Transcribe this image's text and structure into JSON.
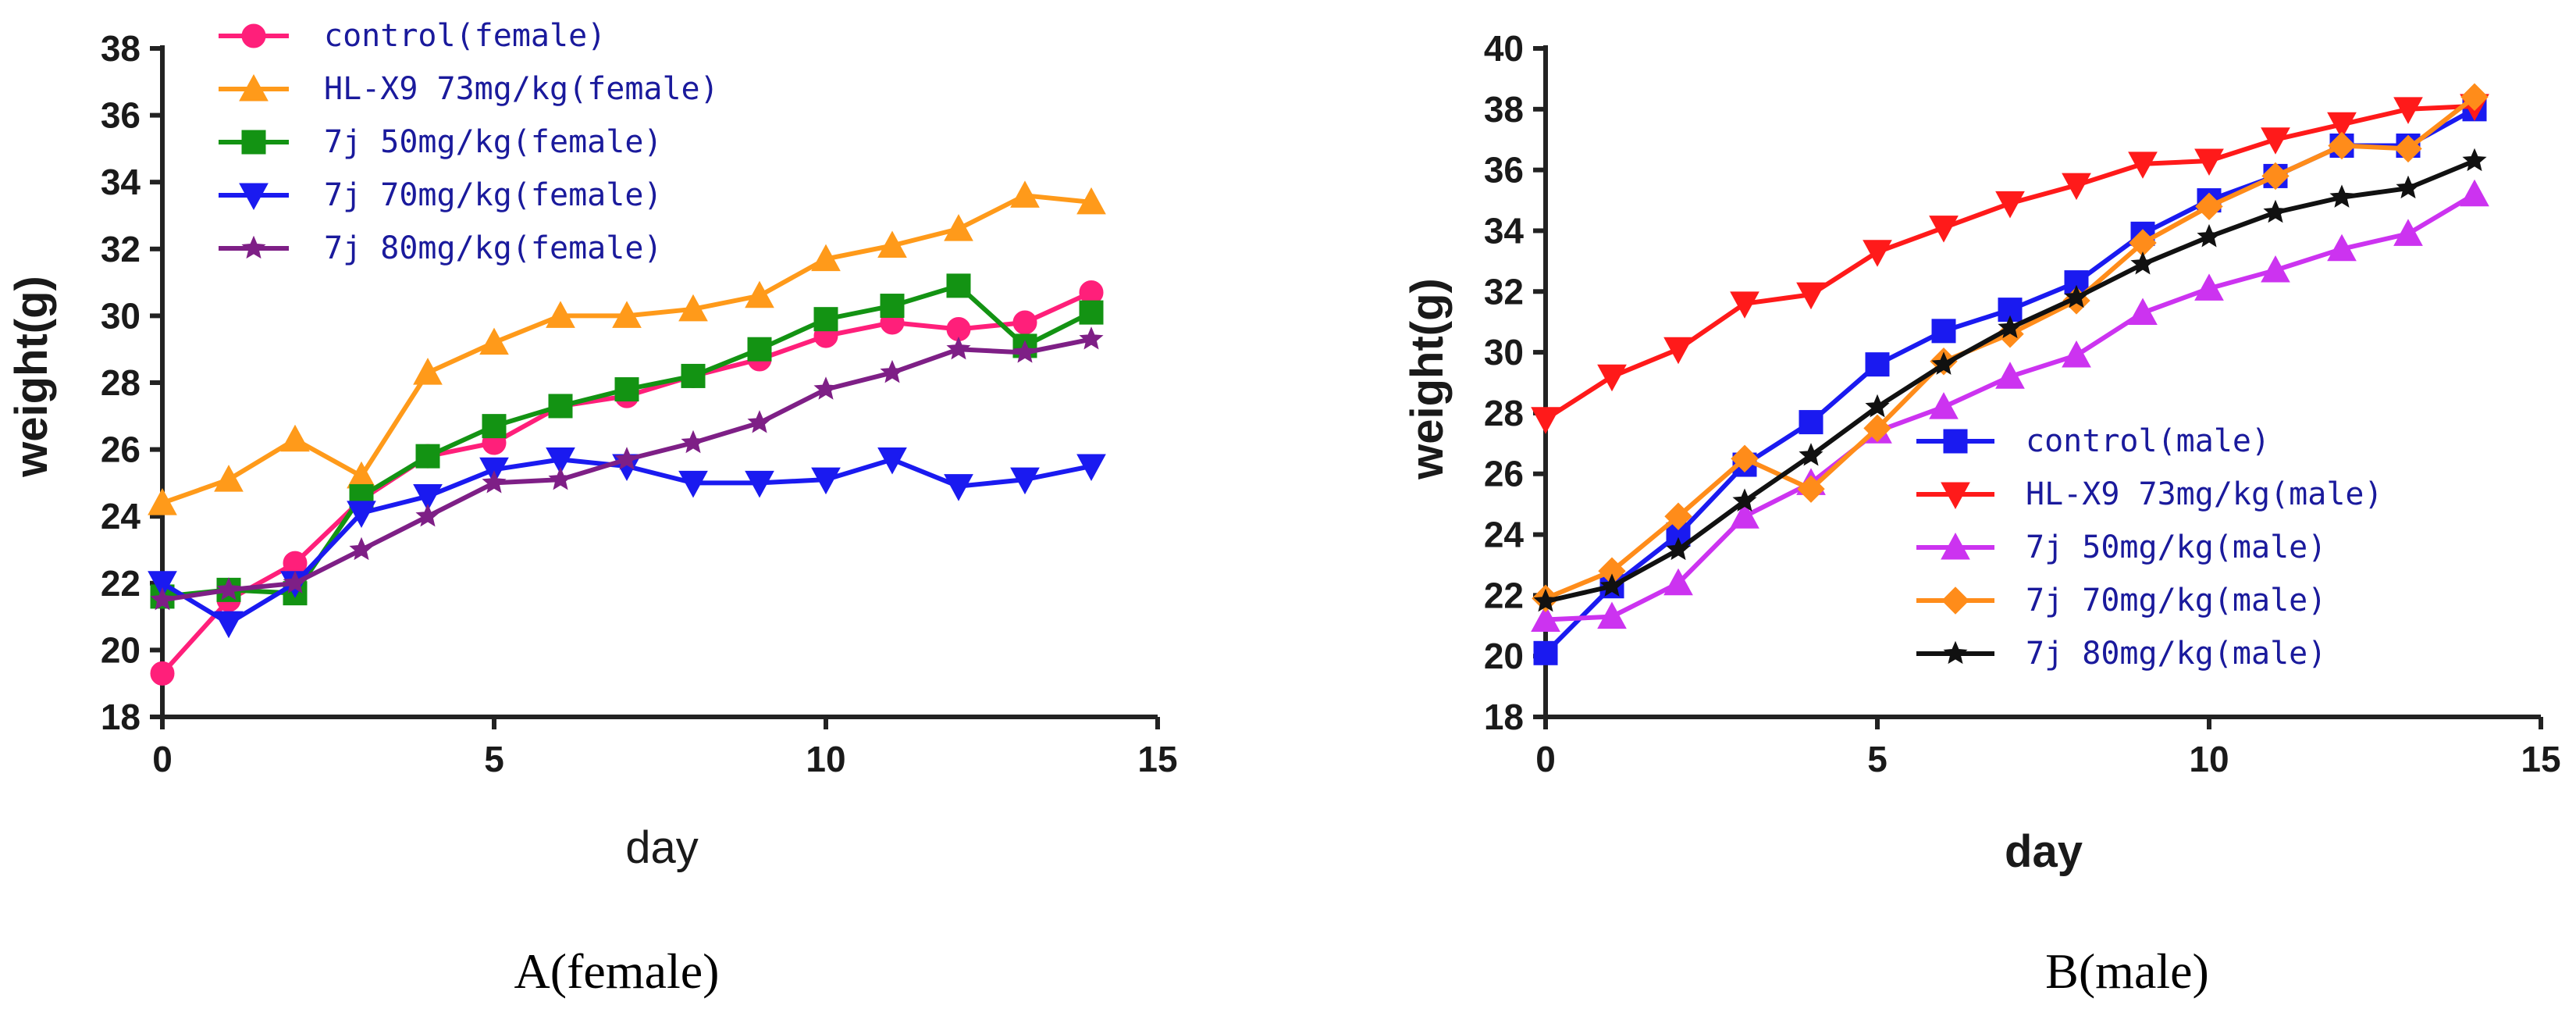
{
  "chart_data": [
    {
      "type": "line",
      "id": "A",
      "caption": "A(female)",
      "xlabel": "day",
      "ylabel": "weight(g)",
      "xlim": [
        0,
        15
      ],
      "ylim": [
        18,
        38
      ],
      "xticks": [
        0,
        5,
        10,
        15
      ],
      "yticks": [
        18,
        20,
        22,
        24,
        26,
        28,
        30,
        32,
        34,
        36,
        38
      ],
      "x": [
        0,
        1,
        2,
        3,
        4,
        5,
        6,
        7,
        8,
        9,
        10,
        11,
        12,
        13,
        14
      ],
      "legend_position": "top-left",
      "series": [
        {
          "name": "control(female)",
          "color": "#ff1f7a",
          "marker": "circle",
          "values": [
            19.3,
            21.5,
            22.6,
            24.5,
            25.8,
            26.2,
            27.3,
            27.6,
            28.2,
            28.7,
            29.4,
            29.8,
            29.6,
            29.8,
            30.7
          ]
        },
        {
          "name": "HL-X9 73mg/kg(female)",
          "color": "#ff9a1a",
          "marker": "triangle-up",
          "values": [
            24.4,
            25.1,
            26.3,
            25.2,
            28.3,
            29.2,
            30.0,
            30.0,
            30.2,
            30.6,
            31.7,
            32.1,
            32.6,
            33.6,
            33.4
          ]
        },
        {
          "name": "7j 50mg/kg(female)",
          "color": "#139313",
          "marker": "square",
          "values": [
            21.6,
            21.8,
            21.7,
            24.6,
            25.8,
            26.7,
            27.3,
            27.8,
            28.2,
            29.0,
            29.9,
            30.3,
            30.9,
            29.1,
            30.1
          ]
        },
        {
          "name": "7j 70mg/kg(female)",
          "color": "#1a1af0",
          "marker": "triangle-down",
          "values": [
            22.0,
            20.8,
            22.0,
            24.1,
            24.6,
            25.4,
            25.7,
            25.5,
            25.0,
            25.0,
            25.1,
            25.7,
            24.9,
            25.1,
            25.5
          ]
        },
        {
          "name": "7j 80mg/kg(female)",
          "color": "#7e1f86",
          "marker": "star",
          "values": [
            21.5,
            21.8,
            22.0,
            23.0,
            24.0,
            25.0,
            25.1,
            25.7,
            26.2,
            26.8,
            27.8,
            28.3,
            29.0,
            28.9,
            29.3
          ]
        }
      ]
    },
    {
      "type": "line",
      "id": "B",
      "caption": "B(male)",
      "xlabel": "day",
      "ylabel": "weight(g)",
      "xlim": [
        0,
        15
      ],
      "ylim": [
        18,
        40
      ],
      "xticks": [
        0,
        5,
        10,
        15
      ],
      "yticks": [
        18,
        20,
        22,
        24,
        26,
        28,
        30,
        32,
        34,
        36,
        38,
        40
      ],
      "x": [
        0,
        1,
        2,
        3,
        4,
        5,
        6,
        7,
        8,
        9,
        10,
        11,
        12,
        13,
        14
      ],
      "legend_position": "bottom-right",
      "series": [
        {
          "name": "control(male)",
          "color": "#1a1af0",
          "marker": "square",
          "values": [
            20.1,
            22.3,
            24.0,
            26.3,
            27.7,
            29.6,
            30.7,
            31.4,
            32.3,
            33.9,
            35.0,
            35.8,
            36.8,
            36.8,
            38.0
          ]
        },
        {
          "name": "HL-X9 73mg/kg(male)",
          "color": "#ff1a1a",
          "marker": "triangle-down",
          "values": [
            27.8,
            29.2,
            30.1,
            31.6,
            31.9,
            33.3,
            34.1,
            34.9,
            35.5,
            36.2,
            36.3,
            37.0,
            37.5,
            38.0,
            38.1
          ]
        },
        {
          "name": "7j 50mg/kg(male)",
          "color": "#cc33f0",
          "marker": "triangle-up",
          "values": [
            21.2,
            21.3,
            22.4,
            24.6,
            25.7,
            27.4,
            28.2,
            29.2,
            29.9,
            31.3,
            32.1,
            32.7,
            33.4,
            33.9,
            35.2
          ]
        },
        {
          "name": "7j 70mg/kg(male)",
          "color": "#ff8c1a",
          "marker": "diamond",
          "values": [
            21.9,
            22.8,
            24.6,
            26.5,
            25.5,
            27.5,
            29.7,
            30.6,
            31.7,
            33.6,
            34.8,
            35.8,
            36.8,
            36.7,
            38.4
          ]
        },
        {
          "name": "7j 80mg/kg(male)",
          "color": "#111111",
          "marker": "star",
          "values": [
            21.8,
            22.3,
            23.5,
            25.1,
            26.6,
            28.2,
            29.6,
            30.8,
            31.8,
            32.9,
            33.8,
            34.6,
            35.1,
            35.4,
            36.3
          ]
        }
      ]
    }
  ]
}
